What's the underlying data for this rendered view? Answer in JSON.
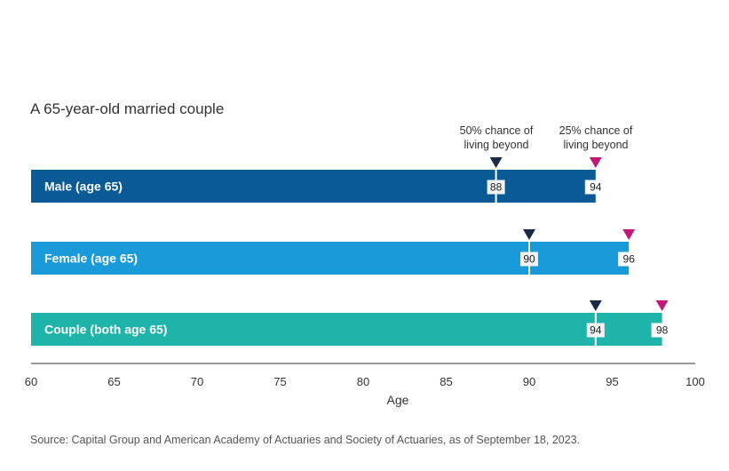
{
  "colors": {
    "male": "#0a5a96",
    "female": "#1a9ad8",
    "couple": "#1fb4a9",
    "marker50": "#1b2a44",
    "marker25": "#c2187a",
    "axis": "#333333",
    "text": "#333333"
  },
  "legend": {
    "p50": {
      "line1": "50% chance of",
      "line2": "living beyond"
    },
    "p25": {
      "line1": "25% chance of",
      "line2": "living beyond"
    }
  },
  "chart_data": {
    "type": "bar",
    "title": "",
    "subtitle": "A 65-year-old married couple",
    "xlabel": "Age",
    "xlim": [
      60,
      100
    ],
    "xticks": [
      60,
      65,
      70,
      75,
      80,
      85,
      90,
      95,
      100
    ],
    "categories": [
      "Male (age 65)",
      "Female (age 65)",
      "Couple (both age 65)"
    ],
    "series": [
      {
        "name": "50% chance of living beyond",
        "values": [
          88,
          90,
          94
        ]
      },
      {
        "name": "25% chance of living beyond",
        "values": [
          94,
          96,
          98
        ]
      }
    ]
  },
  "source": "Source: Capital Group and American Academy of Actuaries and Society of Actuaries, as of September 18, 2023."
}
